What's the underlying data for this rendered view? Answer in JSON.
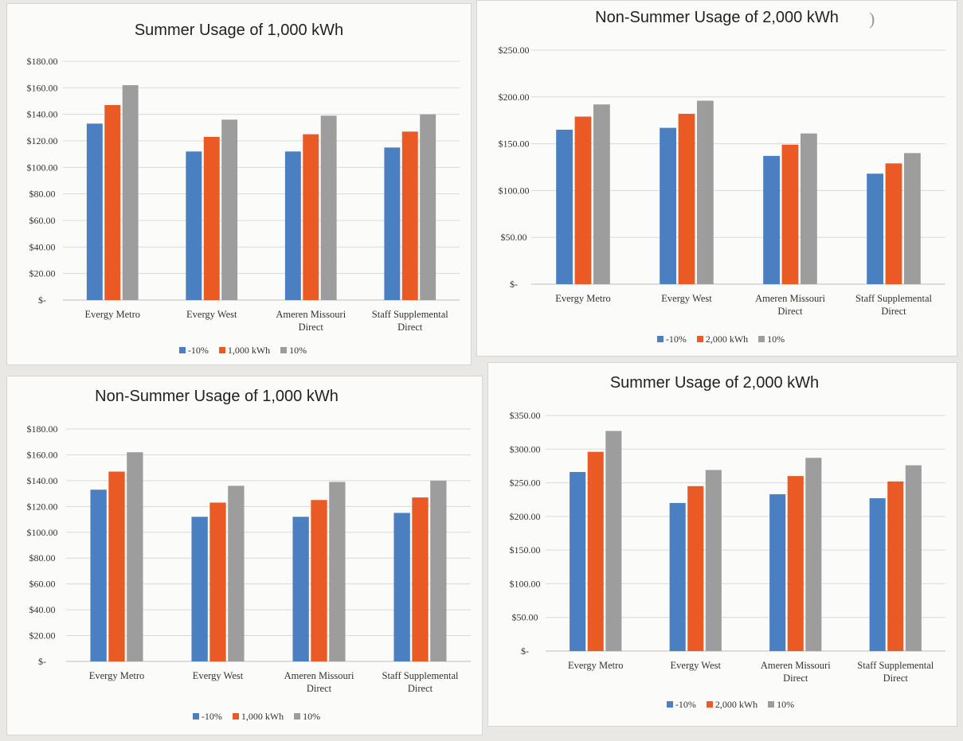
{
  "colors": {
    "series1": "#4a7fc1",
    "series2": "#ea5a24",
    "series3": "#9d9d9d",
    "grid": "#d9d9d9"
  },
  "panels": [
    {
      "title": "Summer Usage of 1,000 kWh",
      "legend": [
        "-10%",
        "1,000 kWh",
        "10%"
      ]
    },
    {
      "title": "Non-Summer Usage of 2,000 kWh",
      "legend": [
        "-10%",
        "2,000 kWh",
        "10%"
      ]
    },
    {
      "title": "Non-Summer Usage of 1,000 kWh",
      "legend": [
        "-10%",
        "1,000 kWh",
        "10%"
      ]
    },
    {
      "title": "Summer Usage of 2,000 kWh",
      "legend": [
        "-10%",
        "2,000 kWh",
        "10%"
      ]
    }
  ],
  "chart_data": [
    {
      "type": "bar",
      "title": "Summer Usage of 1,000 kWh",
      "categories": [
        [
          "Evergy Metro"
        ],
        [
          "Evergy West"
        ],
        [
          "Ameren Missouri",
          "Direct"
        ],
        [
          "Staff Supplemental",
          "Direct"
        ]
      ],
      "yticks": [
        "$-",
        "$20.00",
        "$40.00",
        "$60.00",
        "$80.00",
        "$100.00",
        "$120.00",
        "$140.00",
        "$160.00",
        "$180.00"
      ],
      "ylim": [
        0,
        180
      ],
      "series": [
        {
          "name": "-10%",
          "values": [
            133,
            112,
            112,
            115
          ]
        },
        {
          "name": "1,000 kWh",
          "values": [
            147,
            123,
            125,
            127
          ]
        },
        {
          "name": "10%",
          "values": [
            162,
            136,
            139,
            140
          ]
        }
      ],
      "legend_position": "bottom",
      "grid": true
    },
    {
      "type": "bar",
      "title": "Non-Summer Usage of 2,000 kWh",
      "categories": [
        [
          "Evergy Metro"
        ],
        [
          "Evergy West"
        ],
        [
          "Ameren Missouri",
          "Direct"
        ],
        [
          "Staff Supplemental",
          "Direct"
        ]
      ],
      "yticks": [
        "$-",
        "$50.00",
        "$100.00",
        "$150.00",
        "$200.00",
        "$250.00"
      ],
      "ylim": [
        0,
        250
      ],
      "series": [
        {
          "name": "-10%",
          "values": [
            165,
            167,
            137,
            118
          ]
        },
        {
          "name": "2,000 kWh",
          "values": [
            179,
            182,
            149,
            129
          ]
        },
        {
          "name": "10%",
          "values": [
            192,
            196,
            161,
            140
          ]
        }
      ],
      "legend_position": "bottom",
      "grid": true
    },
    {
      "type": "bar",
      "title": "Non-Summer Usage of 1,000 kWh",
      "categories": [
        [
          "Evergy Metro"
        ],
        [
          "Evergy West"
        ],
        [
          "Ameren Missouri",
          "Direct"
        ],
        [
          "Staff Supplemental",
          "Direct"
        ]
      ],
      "yticks": [
        "$-",
        "$20.00",
        "$40.00",
        "$60.00",
        "$80.00",
        "$100.00",
        "$120.00",
        "$140.00",
        "$160.00",
        "$180.00"
      ],
      "ylim": [
        0,
        180
      ],
      "series": [
        {
          "name": "-10%",
          "values": [
            133,
            112,
            112,
            115
          ]
        },
        {
          "name": "1,000 kWh",
          "values": [
            147,
            123,
            125,
            127
          ]
        },
        {
          "name": "10%",
          "values": [
            162,
            136,
            139,
            140
          ]
        }
      ],
      "legend_position": "bottom",
      "grid": true
    },
    {
      "type": "bar",
      "title": "Summer Usage of 2,000 kWh",
      "categories": [
        [
          "Evergy Metro"
        ],
        [
          "Evergy West"
        ],
        [
          "Ameren Missouri",
          "Direct"
        ],
        [
          "Staff Supplemental",
          "Direct"
        ]
      ],
      "yticks": [
        "$-",
        "$50.00",
        "$100.00",
        "$150.00",
        "$200.00",
        "$250.00",
        "$300.00",
        "$350.00"
      ],
      "ylim": [
        0,
        350
      ],
      "series": [
        {
          "name": "-10%",
          "values": [
            266,
            220,
            233,
            227
          ]
        },
        {
          "name": "2,000 kWh",
          "values": [
            296,
            245,
            260,
            252
          ]
        },
        {
          "name": "10%",
          "values": [
            327,
            269,
            287,
            276
          ]
        }
      ],
      "legend_position": "bottom",
      "grid": true
    }
  ]
}
